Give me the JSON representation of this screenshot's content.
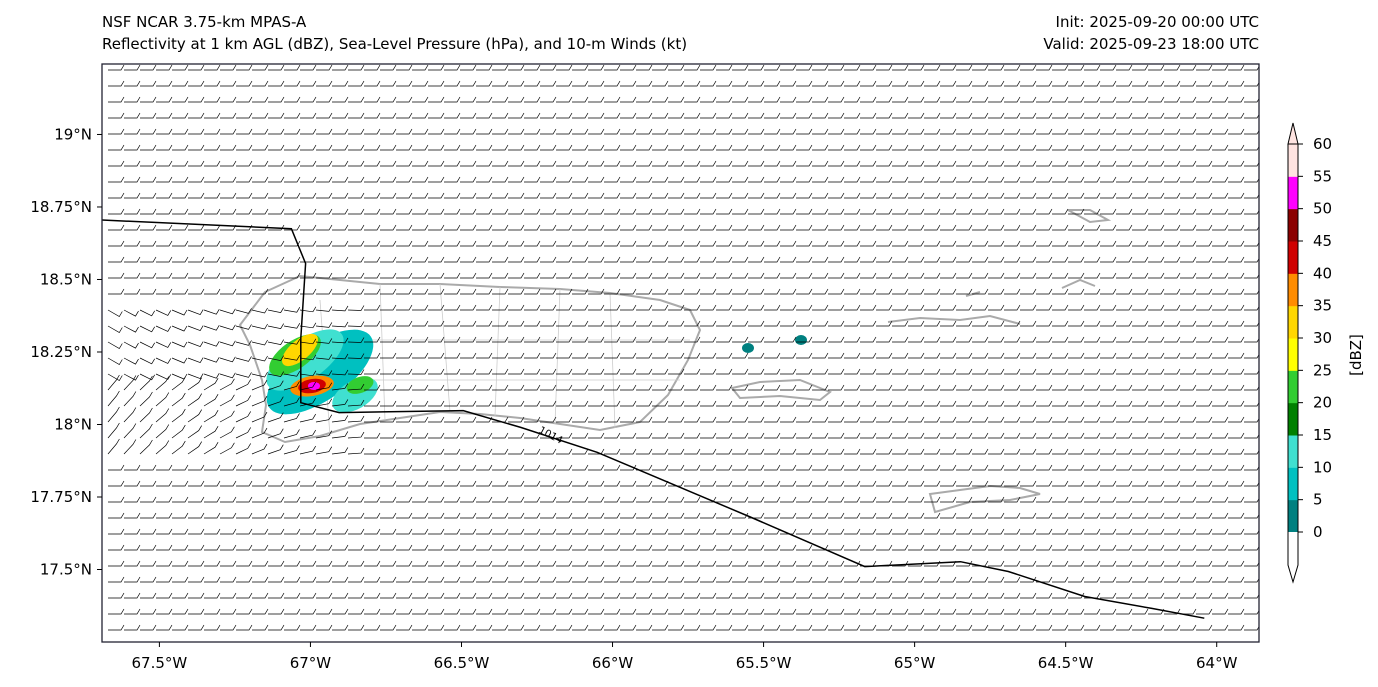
{
  "header": {
    "title_line1": "NSF NCAR 3.75-km MPAS-A",
    "title_line2": "Reflectivity at 1 km AGL (dBZ), Sea-Level Pressure (hPa), and 10-m Winds (kt)",
    "init": "Init: 2025-09-20 00:00 UTC",
    "valid": "Valid: 2025-09-23 18:00 UTC"
  },
  "chart_data": {
    "type": "map",
    "lon_range": [
      -67.69,
      -63.86
    ],
    "lat_range": [
      17.25,
      19.243
    ],
    "x_ticks": [
      {
        "value": -67.5,
        "label": "67.5°W"
      },
      {
        "value": -67.0,
        "label": "67°W"
      },
      {
        "value": -66.5,
        "label": "66.5°W"
      },
      {
        "value": -66.0,
        "label": "66°W"
      },
      {
        "value": -65.5,
        "label": "65.5°W"
      },
      {
        "value": -65.0,
        "label": "65°W"
      },
      {
        "value": -64.5,
        "label": "64.5°W"
      },
      {
        "value": -64.0,
        "label": "64°W"
      }
    ],
    "y_ticks": [
      {
        "value": 19.0,
        "label": "19°N"
      },
      {
        "value": 18.75,
        "label": "18.75°N"
      },
      {
        "value": 18.5,
        "label": "18.5°N"
      },
      {
        "value": 18.25,
        "label": "18.25°N"
      },
      {
        "value": 18.0,
        "label": "18°N"
      },
      {
        "value": 17.75,
        "label": "17.75°N"
      },
      {
        "value": 17.5,
        "label": "17.5°N"
      }
    ],
    "isobar": {
      "label": "1014",
      "points": [
        [
          -67.69,
          18.705
        ],
        [
          -67.063,
          18.675
        ],
        [
          -67.016,
          18.555
        ],
        [
          -67.032,
          18.298
        ],
        [
          -67.032,
          18.075
        ],
        [
          -66.905,
          18.041
        ],
        [
          -66.494,
          18.048
        ],
        [
          -66.304,
          17.99
        ],
        [
          -66.051,
          17.904
        ],
        [
          -65.544,
          17.681
        ],
        [
          -65.165,
          17.51
        ],
        [
          -64.848,
          17.527
        ],
        [
          -64.69,
          17.493
        ],
        [
          -64.437,
          17.407
        ],
        [
          -64.215,
          17.366
        ],
        [
          -64.041,
          17.332
        ]
      ]
    },
    "colorbar": {
      "label": "[dBZ]",
      "levels": [
        0,
        5,
        10,
        15,
        20,
        25,
        30,
        35,
        40,
        45,
        50,
        55,
        60
      ],
      "colors": [
        "#008080",
        "#00c0c0",
        "#40e0d0",
        "#008000",
        "#32cd32",
        "#ffff00",
        "#ffd700",
        "#ff8c00",
        "#d00000",
        "#8b0000",
        "#ff00ff",
        "#ffe4e1"
      ]
    }
  }
}
